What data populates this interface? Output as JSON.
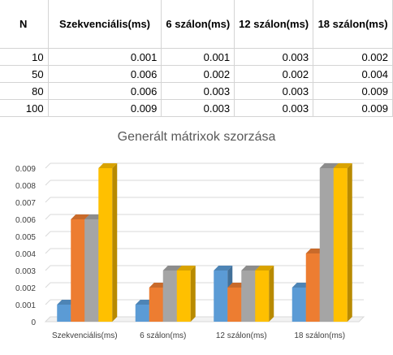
{
  "table": {
    "headers": [
      "N",
      "Szekvenciális(ms)",
      "6 szálon(ms)",
      "12 szálon(ms)",
      "18 szálon(ms)"
    ],
    "rows": [
      [
        "10",
        "0.001",
        "0.001",
        "0.003",
        "0.002"
      ],
      [
        "50",
        "0.006",
        "0.002",
        "0.002",
        "0.004"
      ],
      [
        "80",
        "0.006",
        "0.003",
        "0.003",
        "0.009"
      ],
      [
        "100",
        "0.009",
        "0.003",
        "0.003",
        "0.009"
      ]
    ]
  },
  "chart_data": {
    "type": "bar",
    "title": "Generált mátrixok szorzása",
    "categories": [
      "Szekvenciális(ms)",
      "6 szálon(ms)",
      "12 szálon(ms)",
      "18 szálon(ms)"
    ],
    "series": [
      {
        "values": [
          0.001,
          0.001,
          0.003,
          0.002
        ],
        "color": "#5b9bd5"
      },
      {
        "values": [
          0.006,
          0.002,
          0.002,
          0.004
        ],
        "color": "#ed7d31"
      },
      {
        "values": [
          0.006,
          0.003,
          0.003,
          0.009
        ],
        "color": "#a5a5a5"
      },
      {
        "values": [
          0.009,
          0.003,
          0.003,
          0.009
        ],
        "color": "#ffc000"
      }
    ],
    "yticks": [
      "0",
      "0.001",
      "0.002",
      "0.003",
      "0.004",
      "0.005",
      "0.006",
      "0.007",
      "0.008",
      "0.009"
    ],
    "ylim": [
      0,
      0.009
    ],
    "grid": true,
    "legend": "none",
    "style": "3d-clustered-column"
  }
}
